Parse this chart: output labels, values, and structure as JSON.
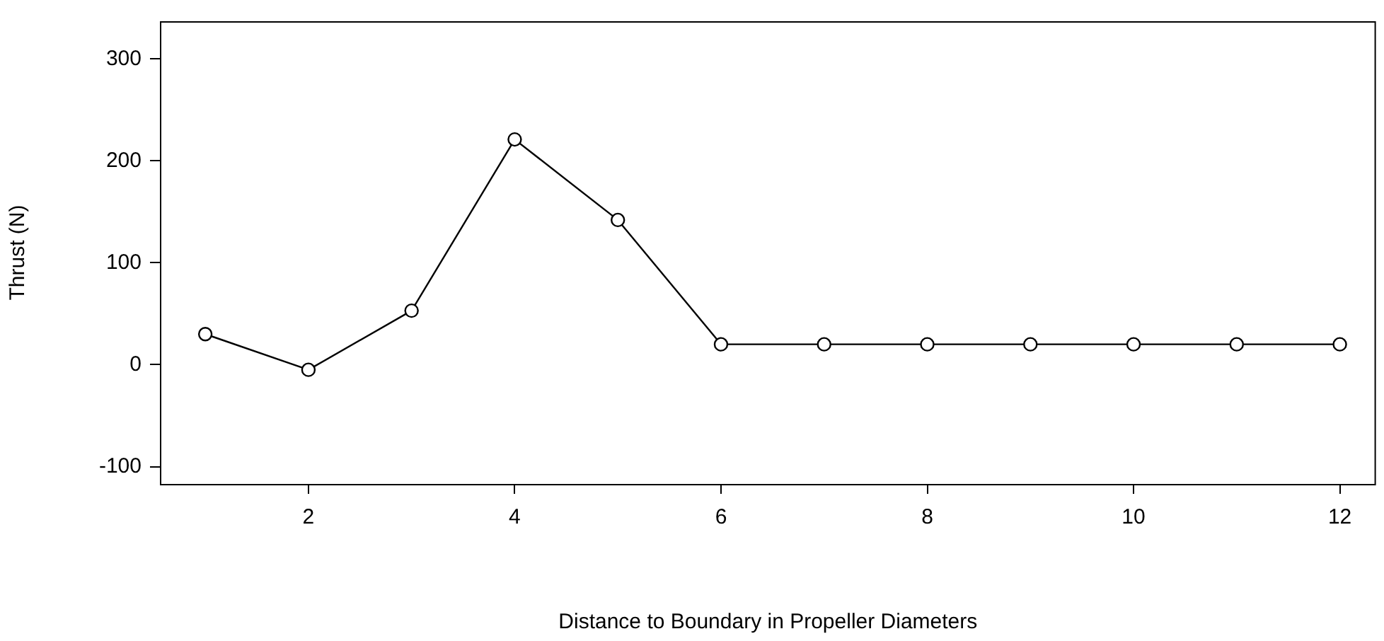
{
  "chart_data": {
    "type": "line",
    "xlabel": "Distance to Boundary in Propeller Diameters",
    "ylabel": "Thrust (N)",
    "x": [
      1,
      2,
      3,
      4,
      5,
      6,
      7,
      8,
      9,
      10,
      11,
      12
    ],
    "series": [
      {
        "color": "#000000",
        "values": [
          30,
          -5,
          53,
          221,
          142,
          20,
          20,
          20,
          20,
          20,
          20,
          20
        ]
      }
    ],
    "xlim": [
      0.56,
      12.35
    ],
    "ylim": [
      -117,
      337
    ],
    "xticks": [
      2,
      4,
      6,
      8,
      10,
      12
    ],
    "yticks": [
      -100,
      0,
      100,
      200,
      300
    ],
    "grid": false,
    "legend": false,
    "marker": "circle",
    "line_style": "solid"
  }
}
